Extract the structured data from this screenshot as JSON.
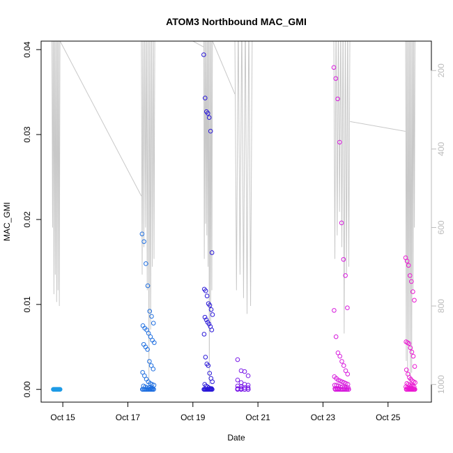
{
  "chart_data": {
    "type": "scatter",
    "title": "ATOM3 Northbound MAC_GMI",
    "xlabel": "Date",
    "ylabel": "MAC_GMI",
    "xlim": [
      "2020-10-14 08:00",
      "2020-10-26 08:00"
    ],
    "ylim": [
      -0.0015,
      0.041
    ],
    "x_ticks": [
      {
        "date": "2020-10-15",
        "label": "Oct 15"
      },
      {
        "date": "2020-10-17",
        "label": "Oct 17"
      },
      {
        "date": "2020-10-19",
        "label": "Oct 19"
      },
      {
        "date": "2020-10-21",
        "label": "Oct 21"
      },
      {
        "date": "2020-10-23",
        "label": "Oct 23"
      },
      {
        "date": "2020-10-25",
        "label": "Oct 25"
      }
    ],
    "y_ticks": [
      {
        "value": 0.0,
        "label": "0.00"
      },
      {
        "value": 0.01,
        "label": "0.01"
      },
      {
        "value": 0.02,
        "label": "0.02"
      },
      {
        "value": 0.03,
        "label": "0.03"
      },
      {
        "value": 0.04,
        "label": "0.04"
      }
    ],
    "right_axis": {
      "inverted": true,
      "ylim": [
        1045,
        125
      ],
      "ticks": [
        {
          "value": 200,
          "label": "200"
        },
        {
          "value": 400,
          "label": "400"
        },
        {
          "value": 600,
          "label": "600"
        },
        {
          "value": 800,
          "label": "800"
        },
        {
          "value": 1000,
          "label": "1000"
        }
      ],
      "color": "#bbbbbb"
    },
    "depth_line_color": "#c8c8c8",
    "groups": [
      {
        "color": "#1e9be6",
        "x_start": "2020-10-14 17:00",
        "x_end": "2020-10-14 22:00",
        "values": [
          0,
          0,
          0,
          0,
          0,
          0,
          0,
          0,
          0,
          0,
          0,
          0,
          0,
          0,
          0,
          0,
          0,
          0
        ]
      },
      {
        "color": "#1f6fe0",
        "x_start": "2020-10-17 10:30",
        "x_end": "2020-10-17 19:30",
        "values": [
          0.0183,
          0.0174,
          0.0148,
          0.0122,
          0.0092,
          0.0086,
          0.0078,
          0.0075,
          0.0072,
          0.007,
          0.0066,
          0.0062,
          0.0058,
          0.0055,
          0.0053,
          0.005,
          0.0047,
          0.0033,
          0.0028,
          0.0024,
          0.002,
          0.0016,
          0.0012,
          0.0009,
          0.0007,
          0.0006,
          0.0005,
          0.0004,
          0.0003,
          0.0002,
          0.0002,
          0.0001,
          0.0001,
          0,
          0,
          0,
          0,
          0,
          0,
          0,
          0,
          0,
          0,
          0,
          0,
          0
        ]
      },
      {
        "color": "#2a18d8",
        "x_start": "2020-10-19 08:00",
        "x_end": "2020-10-19 14:30",
        "values": [
          0.0394,
          0.0343,
          0.0327,
          0.0325,
          0.032,
          0.0304,
          0.0161,
          0.0118,
          0.0116,
          0.011,
          0.0101,
          0.0099,
          0.0094,
          0.0088,
          0.0085,
          0.0082,
          0.0079,
          0.0077,
          0.0074,
          0.007,
          0.0065,
          0.0038,
          0.003,
          0.0028,
          0.0019,
          0.0013,
          0.0009,
          0.0006,
          0.0004,
          0.0003,
          0.0002,
          0.0001,
          0.0001,
          0,
          0,
          0,
          0,
          0,
          0,
          0,
          0,
          0,
          0,
          0,
          0,
          0
        ]
      },
      {
        "color": "#7a1ae8",
        "x_start": "2020-10-20 09:00",
        "x_end": "2020-10-20 19:00",
        "values": [
          0.0035,
          0.0022,
          0.0021,
          0.0016,
          0.0011,
          0.0008,
          0.0006,
          0.0005,
          0.0004,
          0.0003,
          0.0002,
          0.0002,
          0.0001,
          0.0001,
          0,
          0,
          0,
          0,
          0,
          0,
          0,
          0,
          0,
          0,
          0,
          0,
          0,
          0
        ]
      },
      {
        "color": "#d619dc",
        "x_start": "2020-10-23 08:00",
        "x_end": "2020-10-23 19:00",
        "values": [
          0.0379,
          0.0366,
          0.0342,
          0.0291,
          0.0196,
          0.0153,
          0.0134,
          0.0096,
          0.0093,
          0.0062,
          0.0043,
          0.0039,
          0.0033,
          0.0028,
          0.0022,
          0.0018,
          0.0015,
          0.0013,
          0.0011,
          0.001,
          0.0009,
          0.0008,
          0.0007,
          0.0006,
          0.0005,
          0.0005,
          0.0004,
          0.0003,
          0.0003,
          0.0002,
          0.0002,
          0.0002,
          0.0001,
          0.0001,
          0.0001,
          0,
          0,
          0,
          0,
          0,
          0,
          0,
          0,
          0,
          0,
          0,
          0,
          0,
          0,
          0,
          0,
          0,
          0,
          0,
          0
        ]
      },
      {
        "color": "#ea19d2",
        "x_start": "2020-10-25 13:00",
        "x_end": "2020-10-25 20:00",
        "values": [
          0.0155,
          0.0151,
          0.0146,
          0.0134,
          0.0127,
          0.0115,
          0.0105,
          0.0056,
          0.0055,
          0.0054,
          0.0049,
          0.0044,
          0.0039,
          0.0027,
          0.0023,
          0.0018,
          0.0014,
          0.0012,
          0.001,
          0.0009,
          0.0008,
          0.0007,
          0.0006,
          0.0005,
          0.0004,
          0.0004,
          0.0003,
          0.0003,
          0.0002,
          0.0002,
          0.0001,
          0.0001,
          0.0001,
          0,
          0,
          0,
          0,
          0,
          0,
          0,
          0,
          0,
          0,
          0,
          0,
          0,
          0
        ]
      }
    ],
    "depth_profiles": [
      {
        "x_start": "2020-10-14 16:00",
        "x_end": "2020-10-14 22:00",
        "depth_min": 125,
        "depth_max": 800,
        "cast_ends": [
          600,
          770,
          720,
          790,
          760,
          800
        ]
      },
      {
        "x_start": "2020-10-17 10:00",
        "x_end": "2020-10-17 20:00",
        "depth_min": 125,
        "depth_max": 1000,
        "cast_ends": [
          720,
          650,
          600,
          760,
          990,
          860,
          700,
          680
        ]
      },
      {
        "x_start": "2020-10-19 08:00",
        "x_end": "2020-10-19 14:30",
        "depth_min": 125,
        "depth_max": 1000,
        "cast_ends": [
          680,
          590,
          620,
          700,
          1000,
          850,
          760
        ]
      },
      {
        "x_start": "2020-10-20 07:00",
        "x_end": "2020-10-20 20:00",
        "depth_min": 125,
        "depth_max": 820,
        "cast_ends": [
          760,
          720,
          780,
          820,
          800
        ]
      },
      {
        "x_start": "2020-10-23 08:00",
        "x_end": "2020-10-23 20:00",
        "depth_min": 125,
        "depth_max": 870,
        "cast_ends": [
          680,
          620,
          560,
          650,
          870,
          720,
          700
        ]
      },
      {
        "x_start": "2020-10-25 13:00",
        "x_end": "2020-10-25 20:00",
        "depth_min": 125,
        "depth_max": 1000,
        "cast_ends": [
          940,
          980,
          900,
          1000,
          970,
          760,
          600
        ]
      }
    ],
    "depth_connectors": [
      {
        "from": "2020-10-14 22:00",
        "to": "2020-10-17 10:00",
        "depth_from": 125,
        "depth_to": 520
      },
      {
        "from": "2020-10-19 00:00",
        "to": "2020-10-19 08:00",
        "depth_from": 125,
        "depth_to": 140
      },
      {
        "from": "2020-10-19 14:30",
        "to": "2020-10-20 07:00",
        "depth_from": 125,
        "depth_to": 260
      },
      {
        "from": "2020-10-23 20:00",
        "to": "2020-10-25 13:00",
        "depth_from": 330,
        "depth_to": 355
      }
    ]
  }
}
